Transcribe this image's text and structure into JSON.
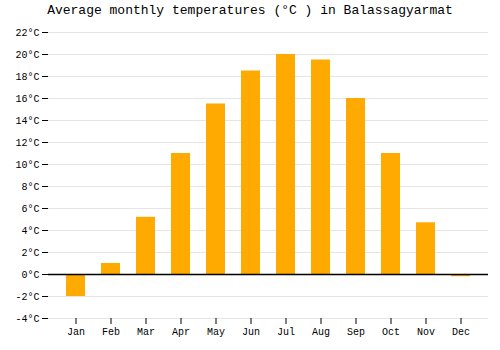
{
  "chart_data": {
    "type": "bar",
    "title": "Average monthly temperatures (°C ) in Balassagyarmat",
    "categories": [
      "Jan",
      "Feb",
      "Mar",
      "Apr",
      "May",
      "Jun",
      "Jul",
      "Aug",
      "Sep",
      "Oct",
      "Nov",
      "Dec"
    ],
    "values": [
      -2.0,
      1.0,
      5.2,
      11.0,
      15.5,
      18.5,
      20.0,
      19.5,
      16.0,
      11.0,
      4.7,
      -0.2
    ],
    "color": "#FFAA00",
    "ylim": [
      -4,
      22
    ],
    "yticks": [
      {
        "value": -4,
        "label": "-4°C"
      },
      {
        "value": -2,
        "label": "-2°C"
      },
      {
        "value": 0,
        "label": "0°C"
      },
      {
        "value": 2,
        "label": "2°C"
      },
      {
        "value": 4,
        "label": "4°C"
      },
      {
        "value": 6,
        "label": "6°C"
      },
      {
        "value": 8,
        "label": "8°C"
      },
      {
        "value": 10,
        "label": "10°C"
      },
      {
        "value": 12,
        "label": "12°C"
      },
      {
        "value": 14,
        "label": "14°C"
      },
      {
        "value": 16,
        "label": "16°C"
      },
      {
        "value": 18,
        "label": "18°C"
      },
      {
        "value": 20,
        "label": "20°C"
      },
      {
        "value": 22,
        "label": "22°C"
      }
    ],
    "grid": true
  }
}
